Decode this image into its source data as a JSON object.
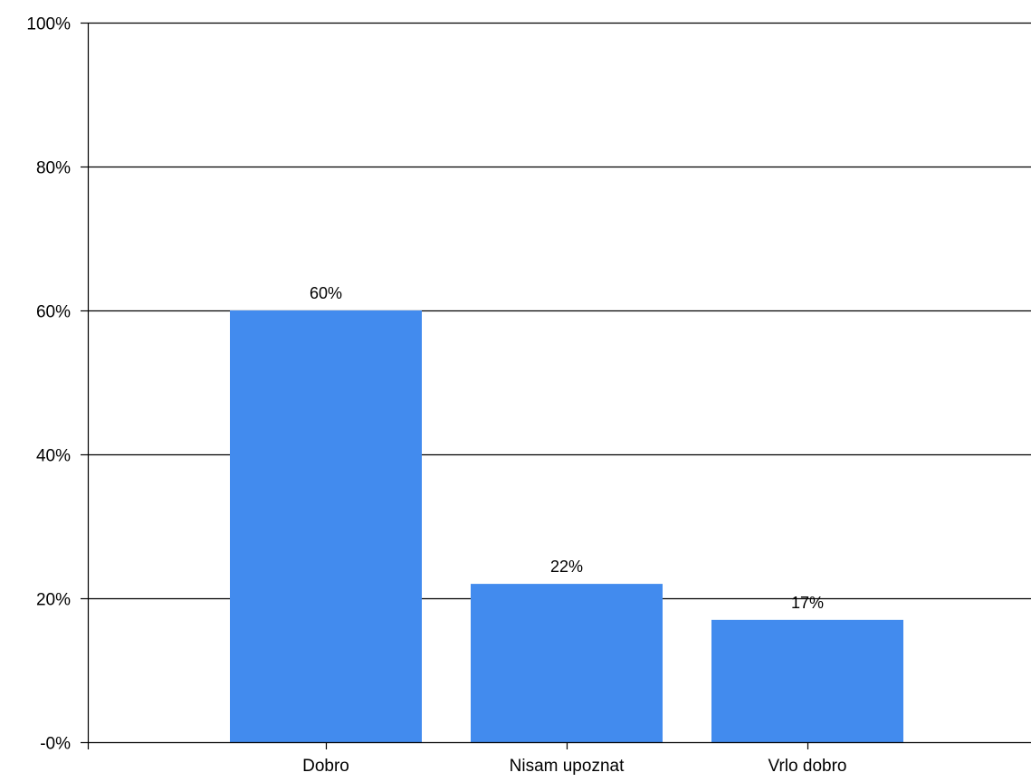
{
  "chart_data": {
    "type": "bar",
    "categories": [
      "Dobro",
      "Nisam upoznat",
      "Vrlo dobro"
    ],
    "values": [
      60,
      22,
      17
    ],
    "data_labels": [
      "60%",
      "22%",
      "17%"
    ],
    "ylim": [
      0,
      100
    ],
    "yticks": [
      0,
      20,
      40,
      60,
      80,
      100
    ],
    "ytick_labels": [
      "-0%",
      "20%",
      "40%",
      "60%",
      "80%",
      "100%"
    ],
    "grid": true,
    "bar_color": "#428BEE",
    "legend": "none"
  }
}
